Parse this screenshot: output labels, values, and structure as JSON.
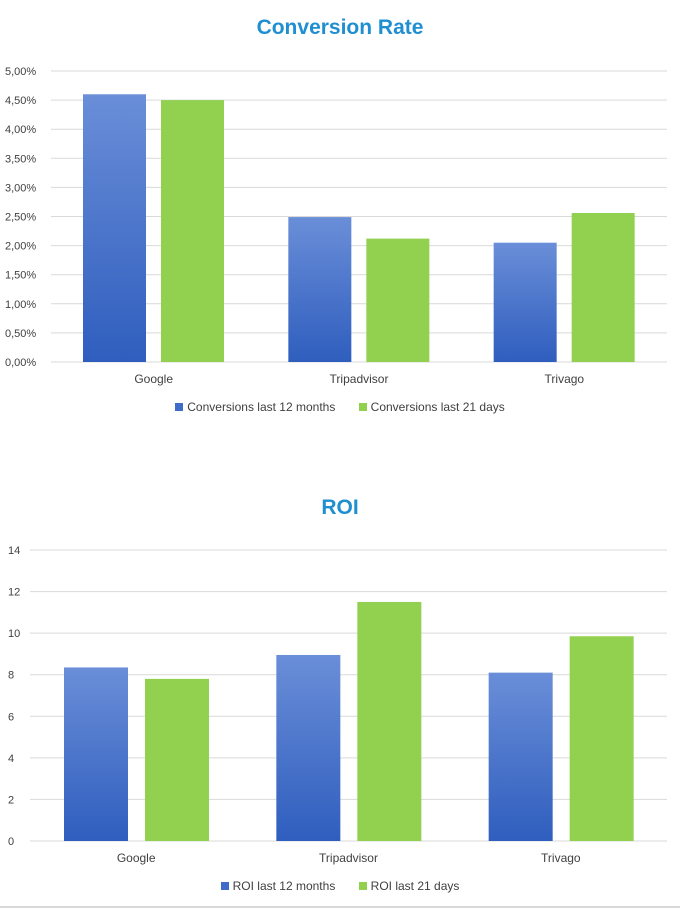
{
  "colors": {
    "title": "#1F8FD2",
    "series_blue_top": "#6A8ED8",
    "series_blue_bottom": "#2F5EBE",
    "series_green": "#92D050",
    "grid": "#d9d9d9",
    "axis_text": "#404040"
  },
  "chart_data": [
    {
      "type": "bar",
      "title": "Conversion Rate",
      "categories": [
        "Google",
        "Tripadvisor",
        "Trivago"
      ],
      "series": [
        {
          "name": "Conversions last 12 months",
          "values": [
            4.6,
            2.49,
            2.05
          ]
        },
        {
          "name": "Conversions last 21 days",
          "values": [
            4.5,
            2.12,
            2.56
          ]
        }
      ],
      "ylim": [
        0,
        5
      ],
      "yticks": [
        "0,00%",
        "0,50%",
        "1,00%",
        "1,50%",
        "2,00%",
        "2,50%",
        "3,00%",
        "3,50%",
        "4,00%",
        "4,50%",
        "5,00%"
      ],
      "grid": true,
      "legend": "bottom"
    },
    {
      "type": "bar",
      "title": "ROI",
      "categories": [
        "Google",
        "Tripadvisor",
        "Trivago"
      ],
      "series": [
        {
          "name": "ROI  last 12 months",
          "values": [
            8.35,
            8.95,
            8.1
          ]
        },
        {
          "name": "ROI  last 21 days",
          "values": [
            7.8,
            11.5,
            9.85
          ]
        }
      ],
      "ylim": [
        0,
        14
      ],
      "yticks": [
        "0",
        "2",
        "4",
        "6",
        "8",
        "10",
        "12",
        "14"
      ],
      "grid": true,
      "legend": "bottom"
    }
  ]
}
